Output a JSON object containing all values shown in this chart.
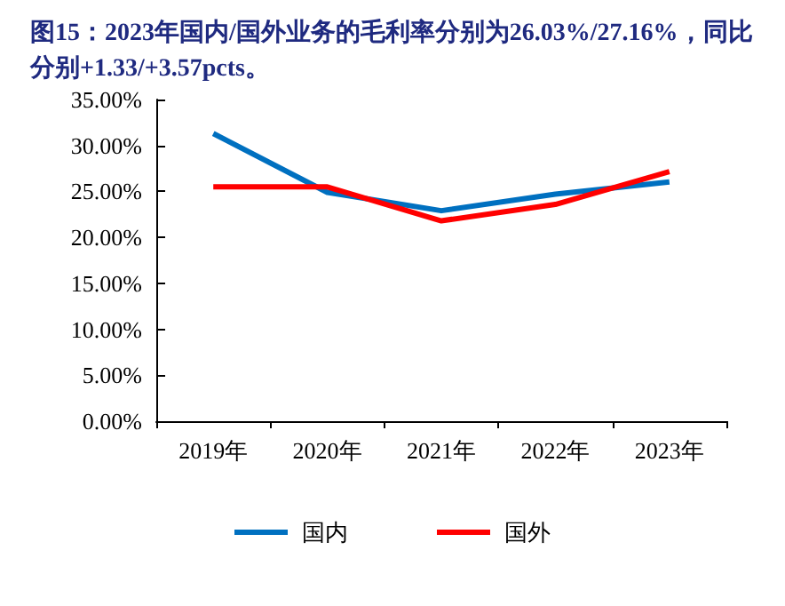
{
  "chart_data": {
    "type": "line",
    "title": "图15：2023年国内/国外业务的毛利率分别为26.03%/27.16%，同比分别+1.33/+3.57pcts。",
    "categories": [
      "2019年",
      "2020年",
      "2021年",
      "2022年",
      "2023年"
    ],
    "series": [
      {
        "name": "国内",
        "color": "#0070c0",
        "values": [
          31.3,
          24.9,
          22.9,
          24.7,
          26.03
        ]
      },
      {
        "name": "国外",
        "color": "#ff0000",
        "values": [
          25.5,
          25.5,
          21.8,
          23.59,
          27.16
        ]
      }
    ],
    "ylim": [
      0,
      35
    ],
    "yticks": [
      {
        "value": 0,
        "label": "0.00%"
      },
      {
        "value": 5,
        "label": "5.00%"
      },
      {
        "value": 10,
        "label": "10.00%"
      },
      {
        "value": 15,
        "label": "15.00%"
      },
      {
        "value": 20,
        "label": "20.00%"
      },
      {
        "value": 25,
        "label": "25.00%"
      },
      {
        "value": 30,
        "label": "30.00%"
      },
      {
        "value": 35,
        "label": "35.00%"
      }
    ],
    "grid": false,
    "legend": "bottom",
    "marker": "none",
    "line_style": "solid"
  }
}
